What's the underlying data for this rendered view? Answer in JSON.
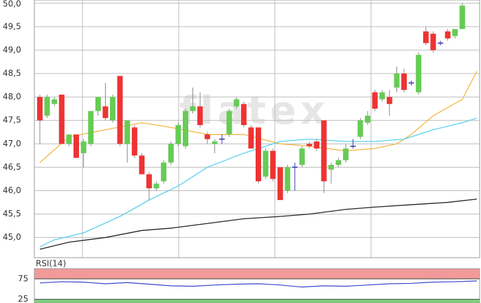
{
  "chart_data": [
    {
      "type": "candlestick",
      "watermark": "flatex",
      "open": [
        48.0,
        47.6,
        47.85,
        48.05,
        47.0,
        47.2,
        46.8,
        47.0,
        47.7,
        47.8,
        47.5,
        48.45,
        47.0,
        47.35,
        46.75,
        46.35,
        46.05,
        46.2,
        46.6,
        47.0,
        46.95,
        47.7,
        47.8,
        47.2,
        47.0,
        47.1,
        47.2,
        47.8,
        47.85,
        47.35,
        47.35,
        46.3,
        46.85,
        46.5,
        46.0,
        46.5,
        46.55,
        47.0,
        47.05,
        47.5,
        46.45,
        46.55,
        46.65,
        46.95,
        47.15,
        47.45,
        48.1,
        47.95,
        48.0,
        48.2,
        48.5,
        48.3,
        48.1,
        49.4,
        49.35,
        49.15,
        49.4,
        49.3,
        49.45
      ],
      "high": [
        48.05,
        48.05,
        48.0,
        48.05,
        47.2,
        47.2,
        47.1,
        47.7,
        48.0,
        48.3,
        48.05,
        48.45,
        47.5,
        47.4,
        46.8,
        46.4,
        46.2,
        46.65,
        47.05,
        47.45,
        47.75,
        48.2,
        48.1,
        47.25,
        47.1,
        47.2,
        47.75,
        48.0,
        47.9,
        47.4,
        47.35,
        46.9,
        46.9,
        46.5,
        46.55,
        46.6,
        46.95,
        47.05,
        47.1,
        47.5,
        46.6,
        46.7,
        47.0,
        47.1,
        47.55,
        47.7,
        48.15,
        48.15,
        48.15,
        48.65,
        48.6,
        48.35,
        48.95,
        49.5,
        49.4,
        49.2,
        49.45,
        49.45,
        50.0
      ],
      "low": [
        47.0,
        47.55,
        47.8,
        47.0,
        46.95,
        46.7,
        46.5,
        46.95,
        47.6,
        47.5,
        47.45,
        46.95,
        46.6,
        46.7,
        46.35,
        45.8,
        46.0,
        46.15,
        46.55,
        46.95,
        46.9,
        47.65,
        47.35,
        47.0,
        46.8,
        47.0,
        47.15,
        47.75,
        47.35,
        46.9,
        46.15,
        46.25,
        46.2,
        45.8,
        45.95,
        46.0,
        46.5,
        46.9,
        46.85,
        45.95,
        46.15,
        46.5,
        46.6,
        46.9,
        47.1,
        47.4,
        47.7,
        47.9,
        47.6,
        48.1,
        48.1,
        48.25,
        48.05,
        49.1,
        48.95,
        49.1,
        49.2,
        49.25,
        49.45
      ],
      "close": [
        47.5,
        48.0,
        47.95,
        47.0,
        47.2,
        46.7,
        47.05,
        47.7,
        48.0,
        47.55,
        48.0,
        47.0,
        47.5,
        46.75,
        46.35,
        46.05,
        46.15,
        46.6,
        47.0,
        47.4,
        47.7,
        47.8,
        47.4,
        47.1,
        47.05,
        47.1,
        47.7,
        47.95,
        47.4,
        46.9,
        46.2,
        46.85,
        46.25,
        45.8,
        46.5,
        46.5,
        46.9,
        46.95,
        46.9,
        46.2,
        46.55,
        46.65,
        46.9,
        46.95,
        47.5,
        47.6,
        47.75,
        48.1,
        47.85,
        48.5,
        48.15,
        48.3,
        48.9,
        49.15,
        49.0,
        49.15,
        49.25,
        49.45,
        49.95
      ],
      "up_color": "#66cc55",
      "down_color": "#ee3333",
      "flat_color": "#3333aa",
      "lines": [
        {
          "color": "#f5b642",
          "x": [
            0,
            4,
            9,
            14,
            18,
            23,
            28,
            33,
            37,
            42,
            46,
            49,
            51,
            54,
            58,
            60
          ],
          "values": [
            46.6,
            47.15,
            47.3,
            47.45,
            47.35,
            47.2,
            47.2,
            47.0,
            46.95,
            46.85,
            46.9,
            47.0,
            47.2,
            47.6,
            47.95,
            48.55
          ]
        },
        {
          "color": "#55d0f0",
          "x": [
            0,
            2,
            6,
            11,
            15,
            19,
            23,
            28,
            33,
            37,
            42,
            46,
            50,
            54,
            58,
            60
          ],
          "values": [
            44.8,
            44.95,
            45.1,
            45.45,
            45.8,
            46.1,
            46.5,
            46.8,
            47.05,
            47.1,
            47.05,
            47.05,
            47.1,
            47.3,
            47.45,
            47.55
          ]
        },
        {
          "color": "#222222",
          "x": [
            0,
            4,
            9,
            14,
            18,
            23,
            28,
            33,
            37,
            42,
            46,
            51,
            56,
            60
          ],
          "values": [
            44.75,
            44.9,
            45.0,
            45.15,
            45.2,
            45.3,
            45.4,
            45.45,
            45.5,
            45.6,
            45.65,
            45.7,
            45.75,
            45.82
          ]
        }
      ],
      "ylim": [
        44.57,
        50.07
      ],
      "yticks": [
        {
          "value": 45,
          "label": "45,0"
        },
        {
          "value": 45.5,
          "label": "45,5"
        },
        {
          "value": 46,
          "label": "46,0"
        },
        {
          "value": 46.5,
          "label": "46,5"
        },
        {
          "value": 47,
          "label": "47,0"
        },
        {
          "value": 47.5,
          "label": "47,5"
        },
        {
          "value": 48,
          "label": "48,0"
        },
        {
          "value": 48.5,
          "label": "48,5"
        },
        {
          "value": 49,
          "label": "49,0"
        },
        {
          "value": 49.5,
          "label": "49,5"
        },
        {
          "value": 50,
          "label": "50,0"
        }
      ],
      "grid": true
    },
    {
      "type": "line",
      "title": "RSI(14)",
      "color": "#3344cc",
      "x": [
        0,
        3,
        6,
        9,
        12,
        15,
        18,
        21,
        24,
        27,
        30,
        33,
        36,
        39,
        42,
        45,
        48,
        51,
        54,
        57,
        60
      ],
      "values": [
        65,
        68,
        67,
        63,
        66,
        62,
        58,
        57,
        60,
        62,
        63,
        60,
        55,
        58,
        57,
        60,
        63,
        64,
        67,
        68,
        70
      ],
      "ylim": [
        16,
        100
      ],
      "yticks": [
        75,
        25
      ],
      "bands": [
        {
          "from": 75,
          "to": 100,
          "color": "#f29a9a"
        },
        {
          "from": 16,
          "to": 25,
          "color": "#7fd07f"
        }
      ]
    }
  ]
}
